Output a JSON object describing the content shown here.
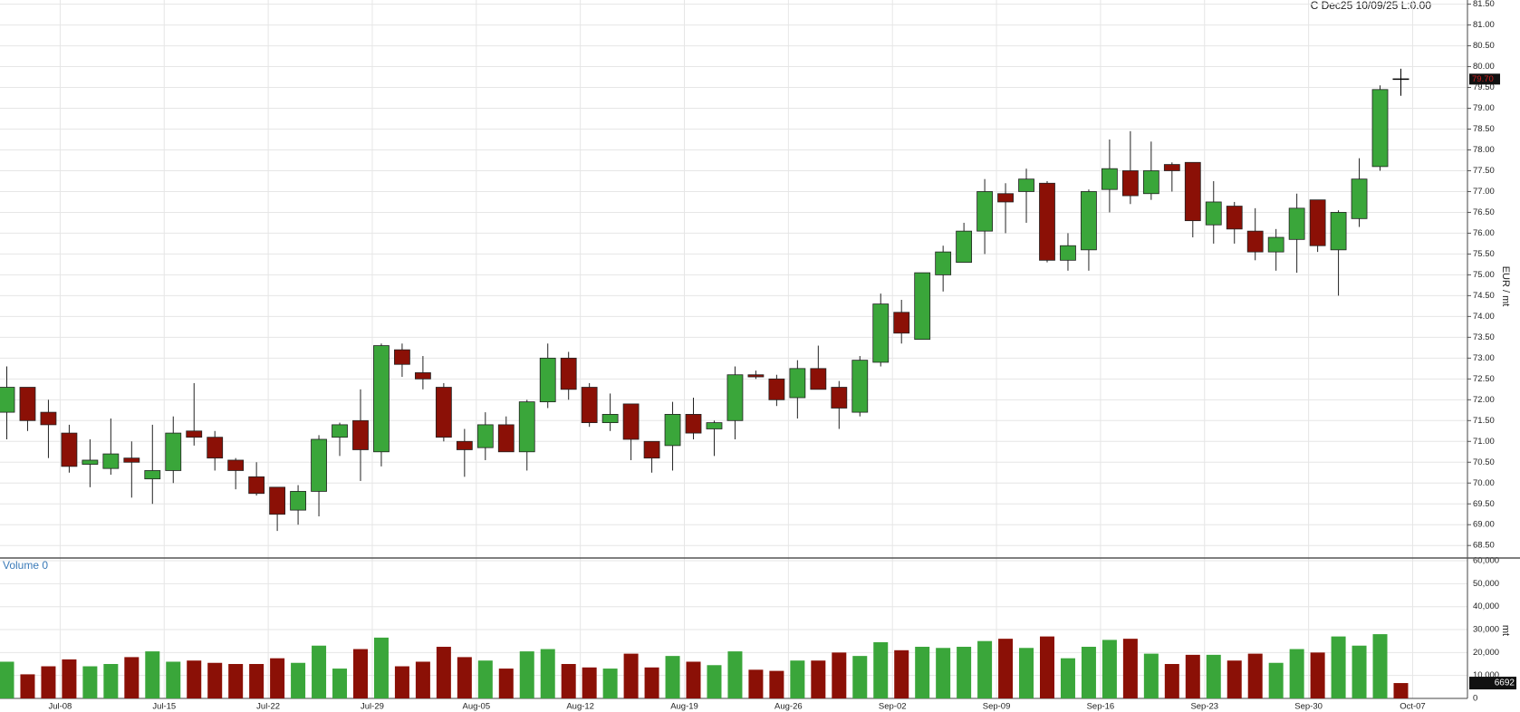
{
  "chart_data": {
    "type": "candlestick",
    "title": "C Dec25 10/09/25 L:0.00",
    "y_label": "EUR / mt",
    "categories": [
      null,
      null,
      null,
      "Jul-08",
      null,
      null,
      null,
      null,
      "Jul-15",
      null,
      null,
      null,
      null,
      "Jul-22",
      null,
      null,
      null,
      null,
      "Jul-29",
      null,
      null,
      null,
      null,
      "Aug-05",
      null,
      null,
      null,
      null,
      "Aug-12",
      null,
      null,
      null,
      null,
      "Aug-19",
      null,
      null,
      null,
      null,
      "Aug-26",
      null,
      null,
      null,
      null,
      "Sep-02",
      null,
      null,
      null,
      null,
      "Sep-09",
      null,
      null,
      null,
      null,
      "Sep-16",
      null,
      null,
      null,
      null,
      "Sep-23",
      null,
      null,
      null,
      null,
      "Sep-30",
      null,
      null,
      null,
      null,
      "Oct-07"
    ],
    "open": [
      71.7,
      72.3,
      71.7,
      71.2,
      70.45,
      70.35,
      70.6,
      70.1,
      70.3,
      71.25,
      71.1,
      70.55,
      70.15,
      69.9,
      69.35,
      69.8,
      71.1,
      71.5,
      70.75,
      73.2,
      72.65,
      72.3,
      71.0,
      70.85,
      71.4,
      70.75,
      71.95,
      73.0,
      72.3,
      71.45,
      71.9,
      71.0,
      70.9,
      71.65,
      71.3,
      71.5,
      72.6,
      72.5,
      72.05,
      72.75,
      72.3,
      71.7,
      72.9,
      74.1,
      73.45,
      75.0,
      75.3,
      76.05,
      76.95,
      77.0,
      77.2,
      75.35,
      75.6,
      77.05,
      77.5,
      76.95,
      77.65,
      77.7,
      76.2,
      76.65,
      76.05,
      75.55,
      75.85,
      76.8,
      75.6,
      76.35,
      77.6,
      79.7,
      null
    ],
    "high": [
      72.8,
      72.3,
      72.0,
      71.4,
      71.05,
      71.55,
      71.0,
      71.4,
      71.6,
      72.4,
      71.25,
      70.6,
      70.5,
      69.9,
      69.95,
      71.15,
      71.45,
      72.25,
      73.35,
      73.35,
      73.05,
      72.4,
      71.3,
      71.7,
      71.6,
      72.0,
      73.35,
      73.15,
      72.4,
      72.15,
      71.9,
      71.0,
      71.95,
      72.05,
      71.5,
      72.8,
      72.7,
      72.6,
      72.95,
      73.3,
      72.45,
      73.05,
      74.55,
      74.4,
      75.05,
      75.7,
      76.25,
      77.3,
      77.2,
      77.55,
      77.25,
      76.0,
      77.05,
      78.25,
      78.45,
      78.2,
      77.7,
      77.7,
      77.25,
      76.75,
      76.6,
      76.1,
      76.95,
      76.8,
      76.55,
      77.8,
      79.55,
      79.95,
      null
    ],
    "low": [
      71.05,
      71.25,
      70.6,
      70.25,
      69.9,
      70.2,
      69.65,
      69.5,
      70.0,
      70.9,
      70.3,
      69.85,
      69.7,
      68.85,
      69.0,
      69.2,
      70.65,
      70.05,
      70.4,
      72.55,
      72.25,
      71.0,
      70.15,
      70.55,
      70.75,
      70.3,
      71.8,
      72.0,
      71.35,
      71.25,
      70.55,
      70.25,
      70.3,
      71.05,
      70.65,
      71.05,
      72.5,
      71.85,
      71.55,
      72.25,
      71.3,
      71.6,
      72.8,
      73.35,
      73.45,
      74.6,
      75.3,
      75.5,
      76.0,
      76.25,
      75.3,
      75.1,
      75.1,
      76.5,
      76.7,
      76.8,
      77.0,
      75.9,
      75.75,
      75.75,
      75.35,
      75.1,
      75.05,
      75.55,
      74.5,
      76.15,
      77.5,
      79.3,
      null
    ],
    "close": [
      72.3,
      71.5,
      71.4,
      70.4,
      70.55,
      70.7,
      70.5,
      70.3,
      71.2,
      71.1,
      70.6,
      70.3,
      69.75,
      69.25,
      69.8,
      71.05,
      71.4,
      70.8,
      73.3,
      72.85,
      72.5,
      71.1,
      70.8,
      71.4,
      70.75,
      71.95,
      73.0,
      72.25,
      71.45,
      71.65,
      71.05,
      70.6,
      71.65,
      71.2,
      71.45,
      72.6,
      72.55,
      72.0,
      72.75,
      72.25,
      71.8,
      72.95,
      74.3,
      73.6,
      75.05,
      75.55,
      76.05,
      77.0,
      76.75,
      77.3,
      75.35,
      75.7,
      77.0,
      77.55,
      76.9,
      77.5,
      77.5,
      76.3,
      76.75,
      76.1,
      75.55,
      75.9,
      76.6,
      75.7,
      76.5,
      77.3,
      79.45,
      79.7,
      null
    ],
    "up_color": "#3aa63a",
    "down_color": "#8b1006",
    "flat_color": "#000000",
    "last_close_label": "79.70",
    "ylim": [
      68.2,
      81.6
    ],
    "yticks": [
      {
        "value": 68.5,
        "label": "68.50"
      },
      {
        "value": 69,
        "label": "69.00"
      },
      {
        "value": 69.5,
        "label": "69.50"
      },
      {
        "value": 70,
        "label": "70.00"
      },
      {
        "value": 70.5,
        "label": "70.50"
      },
      {
        "value": 71,
        "label": "71.00"
      },
      {
        "value": 71.5,
        "label": "71.50"
      },
      {
        "value": 72,
        "label": "72.00"
      },
      {
        "value": 72.5,
        "label": "72.50"
      },
      {
        "value": 73,
        "label": "73.00"
      },
      {
        "value": 73.5,
        "label": "73.50"
      },
      {
        "value": 74,
        "label": "74.00"
      },
      {
        "value": 74.5,
        "label": "74.50"
      },
      {
        "value": 75,
        "label": "75.00"
      },
      {
        "value": 75.5,
        "label": "75.50"
      },
      {
        "value": 76,
        "label": "76.00"
      },
      {
        "value": 76.5,
        "label": "76.50"
      },
      {
        "value": 77,
        "label": "77.00"
      },
      {
        "value": 77.5,
        "label": "77.50"
      },
      {
        "value": 78,
        "label": "78.00"
      },
      {
        "value": 78.5,
        "label": "78.50"
      },
      {
        "value": 79,
        "label": "79.00"
      },
      {
        "value": 79.5,
        "label": "79.50"
      },
      {
        "value": 80,
        "label": "80.00"
      },
      {
        "value": 80.5,
        "label": "80.50"
      },
      {
        "value": 81,
        "label": "81.00"
      },
      {
        "value": 81.5,
        "label": "81.50"
      }
    ],
    "grid": true,
    "volume": {
      "title": "Volume 0",
      "y_label": "mt",
      "values": [
        16000,
        10500,
        14000,
        17000,
        14000,
        15000,
        18000,
        20500,
        16000,
        16500,
        15500,
        15000,
        15000,
        17500,
        15500,
        23000,
        13000,
        21500,
        26500,
        14000,
        16000,
        22500,
        18000,
        16500,
        13000,
        20500,
        21500,
        15000,
        13500,
        13000,
        19500,
        13500,
        18500,
        16000,
        14500,
        20500,
        12500,
        12000,
        16500,
        16500,
        20000,
        18500,
        24500,
        21000,
        22500,
        22000,
        22500,
        25000,
        26000,
        22000,
        27000,
        17500,
        22500,
        25500,
        26000,
        19500,
        15000,
        19000,
        19000,
        16500,
        19500,
        15500,
        21500,
        20000,
        27000,
        23000,
        28000,
        6692,
        null
      ],
      "ylim": [
        0,
        61000
      ],
      "yticks": [
        0,
        {
          "value": 10000,
          "label": "10,000"
        },
        {
          "value": 20000,
          "label": "20,000"
        },
        {
          "value": 30000,
          "label": "30,000"
        },
        {
          "value": 40000,
          "label": "40,000"
        },
        {
          "value": 50000,
          "label": "50,000"
        },
        {
          "value": 60000,
          "label": "60,000"
        }
      ]
    }
  }
}
